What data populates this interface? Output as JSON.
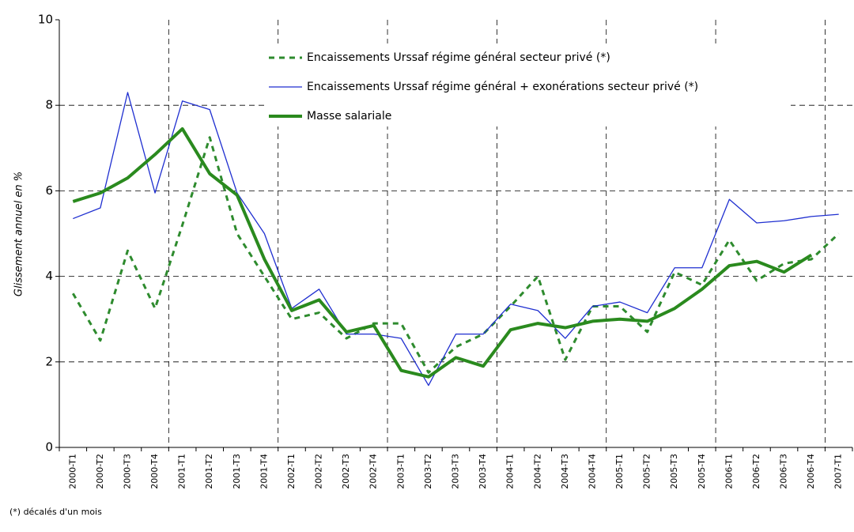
{
  "chart_data": {
    "type": "line",
    "y_label": "Glissement annuel en %",
    "footnote": "(*) décalés d'un mois",
    "categories": [
      "2000-T1",
      "2000-T2",
      "2000-T3",
      "2000-T4",
      "2001-T1",
      "2001-T2",
      "2001-T3",
      "2001-T4",
      "2002-T1",
      "2002-T2",
      "2002-T3",
      "2002-T4",
      "2003-T1",
      "2003-T2",
      "2003-T3",
      "2003-T4",
      "2004-T1",
      "2004-T2",
      "2004-T3",
      "2004-T4",
      "2005-T1",
      "2005-T2",
      "2005-T3",
      "2005-T4",
      "2006-T1",
      "2006-T2",
      "2006-T3",
      "2006-T4",
      "2007-T1"
    ],
    "series": [
      {
        "name": "Encaissements Urssaf régime général secteur privé (*)",
        "color": "#2e8b2e",
        "style": "dashed",
        "width": 3,
        "values": [
          3.6,
          2.5,
          4.6,
          3.25,
          5.2,
          7.25,
          5.0,
          4.0,
          3.0,
          3.15,
          2.55,
          2.9,
          2.9,
          1.75,
          2.35,
          2.65,
          3.3,
          4.0,
          2.05,
          3.3,
          3.3,
          2.7,
          4.1,
          3.8,
          4.85,
          3.9,
          4.3,
          4.4,
          5.0
        ]
      },
      {
        "name": "Encaissements Urssaf régime général + exonérations secteur privé (*)",
        "color": "#1f2fd0",
        "style": "solid",
        "width": 1.3,
        "values": [
          5.35,
          5.6,
          8.3,
          5.95,
          8.1,
          7.9,
          5.95,
          5.0,
          3.25,
          3.7,
          2.65,
          2.65,
          2.55,
          1.45,
          2.65,
          2.65,
          3.35,
          3.2,
          2.55,
          3.3,
          3.4,
          3.15,
          4.2,
          4.2,
          5.8,
          5.25,
          5.3,
          5.4,
          5.45
        ]
      },
      {
        "name": "Masse salariale",
        "color": "#2a8a1e",
        "style": "solid",
        "width": 4,
        "values": [
          5.75,
          5.95,
          6.3,
          6.85,
          7.45,
          6.4,
          5.9,
          4.4,
          3.2,
          3.45,
          2.7,
          2.85,
          1.8,
          1.65,
          2.1,
          1.9,
          2.75,
          2.9,
          2.8,
          2.95,
          3.0,
          2.95,
          3.25,
          3.7,
          4.25,
          4.35,
          4.1,
          4.5,
          null
        ]
      }
    ],
    "ylim": [
      0,
      10
    ],
    "yticks": [
      0,
      2,
      4,
      6,
      8,
      10
    ],
    "grid": true
  }
}
